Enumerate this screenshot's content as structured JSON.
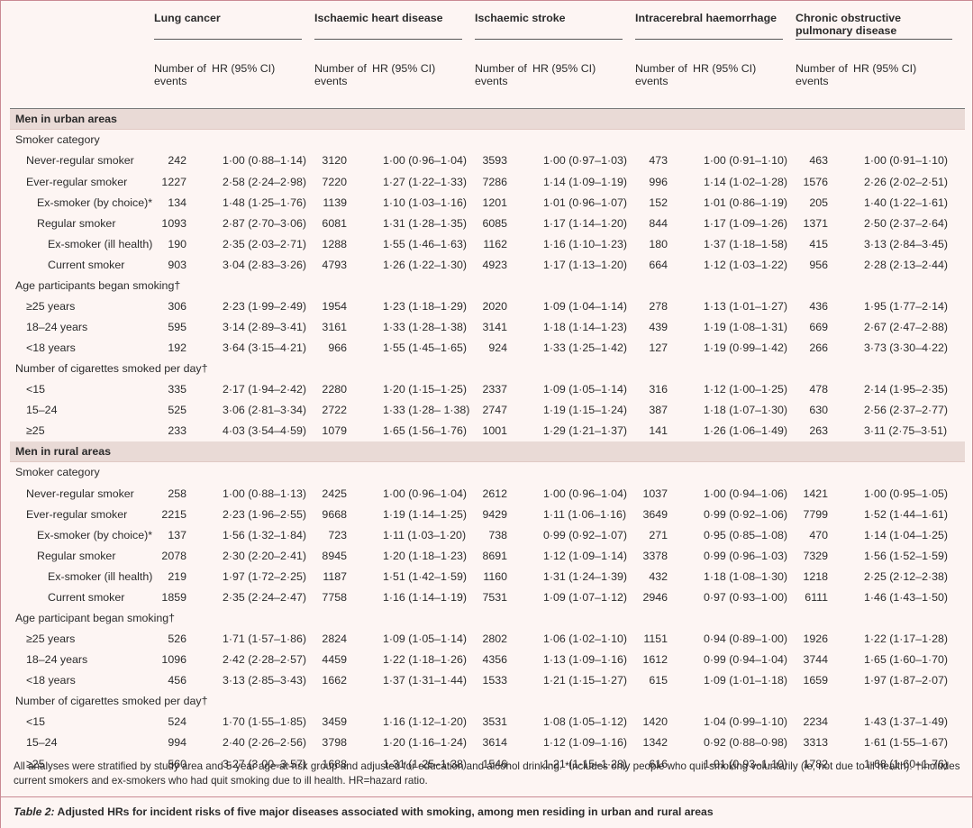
{
  "diseases": [
    "Lung cancer",
    "Ischaemic heart disease",
    "Ischaemic stroke",
    "Intracerebral haemorrhage",
    "Chronic obstructive pulmonary disease"
  ],
  "col_events": "Number of events",
  "col_hr": "HR (95% CI)",
  "sections": [
    {
      "title": "Men in urban areas",
      "groups": [
        {
          "title": "Smoker category",
          "rows": [
            {
              "label": "Never-regular smoker",
              "indent": 1,
              "cells": [
                [
                  "242",
                  "1·00 (0·88–1·14)"
                ],
                [
                  "3120",
                  "1·00 (0·96–1·04)"
                ],
                [
                  "3593",
                  "1·00 (0·97–1·03)"
                ],
                [
                  "473",
                  "1·00 (0·91–1·10)"
                ],
                [
                  "463",
                  "1·00 (0·91–1·10)"
                ]
              ]
            },
            {
              "label": "Ever-regular smoker",
              "indent": 1,
              "cells": [
                [
                  "1227",
                  "2·58 (2·24–2·98)"
                ],
                [
                  "7220",
                  "1·27 (1·22–1·33)"
                ],
                [
                  "7286",
                  "1·14 (1·09–1·19)"
                ],
                [
                  "996",
                  "1·14 (1·02–1·28)"
                ],
                [
                  "1576",
                  "2·26 (2·02–2·51)"
                ]
              ]
            },
            {
              "label": "Ex-smoker (by choice)*",
              "indent": 2,
              "cells": [
                [
                  "134",
                  "1·48 (1·25–1·76)"
                ],
                [
                  "1139",
                  "1·10 (1·03–1·16)"
                ],
                [
                  "1201",
                  "1·01 (0·96–1·07)"
                ],
                [
                  "152",
                  "1·01 (0·86–1·19)"
                ],
                [
                  "205",
                  "1·40 (1·22–1·61)"
                ]
              ]
            },
            {
              "label": "Regular smoker",
              "indent": 2,
              "cells": [
                [
                  "1093",
                  "2·87 (2·70–3·06)"
                ],
                [
                  "6081",
                  "1·31 (1·28–1·35)"
                ],
                [
                  "6085",
                  "1·17 (1·14–1·20)"
                ],
                [
                  "844",
                  "1·17 (1·09–1·26)"
                ],
                [
                  "1371",
                  "2·50 (2·37–2·64)"
                ]
              ]
            },
            {
              "label": "Ex-smoker (ill health)",
              "indent": 3,
              "cells": [
                [
                  "190",
                  "2·35 (2·03–2·71)"
                ],
                [
                  "1288",
                  "1·55 (1·46–1·63)"
                ],
                [
                  "1162",
                  "1·16 (1·10–1·23)"
                ],
                [
                  "180",
                  "1·37 (1·18–1·58)"
                ],
                [
                  "415",
                  "3·13 (2·84–3·45)"
                ]
              ]
            },
            {
              "label": "Current smoker",
              "indent": 3,
              "cells": [
                [
                  "903",
                  "3·04 (2·83–3·26)"
                ],
                [
                  "4793",
                  "1·26 (1·22–1·30)"
                ],
                [
                  "4923",
                  "1·17 (1·13–1·20)"
                ],
                [
                  "664",
                  "1·12 (1·03–1·22)"
                ],
                [
                  "956",
                  "2·28 (2·13–2·44)"
                ]
              ]
            }
          ]
        },
        {
          "title": "Age participants began smoking†",
          "rows": [
            {
              "label": "≥25 years",
              "indent": 1,
              "cells": [
                [
                  "306",
                  "2·23 (1·99–2·49)"
                ],
                [
                  "1954",
                  "1·23 (1·18–1·29)"
                ],
                [
                  "2020",
                  "1·09 (1·04–1·14)"
                ],
                [
                  "278",
                  "1·13 (1·01–1·27)"
                ],
                [
                  "436",
                  "1·95 (1·77–2·14)"
                ]
              ]
            },
            {
              "label": "18–24 years",
              "indent": 1,
              "cells": [
                [
                  "595",
                  "3·14 (2·89–3·41)"
                ],
                [
                  "3161",
                  "1·33 (1·28–1·38)"
                ],
                [
                  "3141",
                  "1·18 (1·14–1·23)"
                ],
                [
                  "439",
                  "1·19 (1·08–1·31)"
                ],
                [
                  "669",
                  "2·67 (2·47–2·88)"
                ]
              ]
            },
            {
              "label": "<18 years",
              "indent": 1,
              "cells": [
                [
                  "192",
                  "3·64 (3·15–4·21)"
                ],
                [
                  "966",
                  "1·55 (1·45–1·65)"
                ],
                [
                  "924",
                  "1·33 (1·25–1·42)"
                ],
                [
                  "127",
                  "1·19 (0·99–1·42)"
                ],
                [
                  "266",
                  "3·73 (3·30–4·22)"
                ]
              ]
            }
          ]
        },
        {
          "title": "Number of cigarettes smoked per day†",
          "rows": [
            {
              "label": "<15",
              "indent": 1,
              "cells": [
                [
                  "335",
                  "2·17 (1·94–2·42)"
                ],
                [
                  "2280",
                  "1·20 (1·15–1·25)"
                ],
                [
                  "2337",
                  "1·09 (1·05–1·14)"
                ],
                [
                  "316",
                  "1·12 (1·00–1·25)"
                ],
                [
                  "478",
                  "2·14 (1·95–2·35)"
                ]
              ]
            },
            {
              "label": "15–24",
              "indent": 1,
              "cells": [
                [
                  "525",
                  "3·06 (2·81–3·34)"
                ],
                [
                  "2722",
                  "1·33 (1·28– 1·38)"
                ],
                [
                  "2747",
                  "1·19 (1·15–1·24)"
                ],
                [
                  "387",
                  "1·18 (1·07–1·30)"
                ],
                [
                  "630",
                  "2·56 (2·37–2·77)"
                ]
              ]
            },
            {
              "label": "≥25",
              "indent": 1,
              "cells": [
                [
                  "233",
                  "4·03 (3·54–4·59)"
                ],
                [
                  "1079",
                  "1·65 (1·56–1·76)"
                ],
                [
                  "1001",
                  "1·29 (1·21–1·37)"
                ],
                [
                  "141",
                  "1·26 (1·06–1·49)"
                ],
                [
                  "263",
                  "3·11 (2·75–3·51)"
                ]
              ]
            }
          ]
        }
      ]
    },
    {
      "title": "Men in rural areas",
      "groups": [
        {
          "title": "Smoker category",
          "rows": [
            {
              "label": "Never-regular smoker",
              "indent": 1,
              "cells": [
                [
                  "258",
                  "1·00 (0·88–1·13)"
                ],
                [
                  "2425",
                  "1·00 (0·96–1·04)"
                ],
                [
                  "2612",
                  "1·00 (0·96–1·04)"
                ],
                [
                  "1037",
                  "1·00 (0·94–1·06)"
                ],
                [
                  "1421",
                  "1·00 (0·95–1·05)"
                ]
              ]
            },
            {
              "label": "Ever-regular smoker",
              "indent": 1,
              "cells": [
                [
                  "2215",
                  "2·23 (1·96–2·55)"
                ],
                [
                  "9668",
                  "1·19 (1·14–1·25)"
                ],
                [
                  "9429",
                  "1·11 (1·06–1·16)"
                ],
                [
                  "3649",
                  "0·99 (0·92–1·06)"
                ],
                [
                  "7799",
                  "1·52 (1·44–1·61)"
                ]
              ]
            },
            {
              "label": "Ex-smoker (by choice)*",
              "indent": 2,
              "cells": [
                [
                  "137",
                  "1·56 (1·32–1·84)"
                ],
                [
                  "723",
                  "1·11 (1·03–1·20)"
                ],
                [
                  "738",
                  "0·99 (0·92–1·07)"
                ],
                [
                  "271",
                  "0·95 (0·85–1·08)"
                ],
                [
                  "470",
                  "1·14 (1·04–1·25)"
                ]
              ]
            },
            {
              "label": "Regular smoker",
              "indent": 2,
              "cells": [
                [
                  "2078",
                  "2·30 (2·20–2·41)"
                ],
                [
                  "8945",
                  "1·20 (1·18–1·23)"
                ],
                [
                  "8691",
                  "1·12 (1·09–1·14)"
                ],
                [
                  "3378",
                  "0·99 (0·96–1·03)"
                ],
                [
                  "7329",
                  "1·56 (1·52–1·59)"
                ]
              ]
            },
            {
              "label": "Ex-smoker (ill health)",
              "indent": 3,
              "cells": [
                [
                  "219",
                  "1·97 (1·72–2·25)"
                ],
                [
                  "1187",
                  "1·51 (1·42–1·59)"
                ],
                [
                  "1160",
                  "1·31 (1·24–1·39)"
                ],
                [
                  "432",
                  "1·18 (1·08–1·30)"
                ],
                [
                  "1218",
                  "2·25 (2·12–2·38)"
                ]
              ]
            },
            {
              "label": "Current smoker",
              "indent": 3,
              "cells": [
                [
                  "1859",
                  "2·35 (2·24–2·47)"
                ],
                [
                  "7758",
                  "1·16 (1·14–1·19)"
                ],
                [
                  "7531",
                  "1·09 (1·07–1·12)"
                ],
                [
                  "2946",
                  "0·97 (0·93–1·00)"
                ],
                [
                  "6111",
                  "1·46 (1·43–1·50)"
                ]
              ]
            }
          ]
        },
        {
          "title": "Age participant began smoking†",
          "rows": [
            {
              "label": "≥25 years",
              "indent": 1,
              "cells": [
                [
                  "526",
                  "1·71 (1·57–1·86)"
                ],
                [
                  "2824",
                  "1·09 (1·05–1·14)"
                ],
                [
                  "2802",
                  "1·06 (1·02–1·10)"
                ],
                [
                  "1151",
                  "0·94 (0·89–1·00)"
                ],
                [
                  "1926",
                  "1·22 (1·17–1·28)"
                ]
              ]
            },
            {
              "label": "18–24 years",
              "indent": 1,
              "cells": [
                [
                  "1096",
                  "2·42 (2·28–2·57)"
                ],
                [
                  "4459",
                  "1·22 (1·18–1·26)"
                ],
                [
                  "4356",
                  "1·13 (1·09–1·16)"
                ],
                [
                  "1612",
                  "0·99 (0·94–1·04)"
                ],
                [
                  "3744",
                  "1·65 (1·60–1·70)"
                ]
              ]
            },
            {
              "label": "<18 years",
              "indent": 1,
              "cells": [
                [
                  "456",
                  "3·13 (2·85–3·43)"
                ],
                [
                  "1662",
                  "1·37 (1·31–1·44)"
                ],
                [
                  "1533",
                  "1·21 (1·15–1·27)"
                ],
                [
                  "615",
                  "1·09 (1·01–1·18)"
                ],
                [
                  "1659",
                  "1·97 (1·87–2·07)"
                ]
              ]
            }
          ]
        },
        {
          "title": "Number of cigarettes smoked per day†",
          "rows": [
            {
              "label": "<15",
              "indent": 1,
              "cells": [
                [
                  "524",
                  "1·70 (1·55–1·85)"
                ],
                [
                  "3459",
                  "1·16 (1·12–1·20)"
                ],
                [
                  "3531",
                  "1·08 (1·05–1·12)"
                ],
                [
                  "1420",
                  "1·04 (0·99–1·10)"
                ],
                [
                  "2234",
                  "1·43 (1·37–1·49)"
                ]
              ]
            },
            {
              "label": "15–24",
              "indent": 1,
              "cells": [
                [
                  "994",
                  "2·40 (2·26–2·56)"
                ],
                [
                  "3798",
                  "1·20 (1·16–1·24)"
                ],
                [
                  "3614",
                  "1·12 (1·09–1·16)"
                ],
                [
                  "1342",
                  "0·92 (0·88–0·98)"
                ],
                [
                  "3313",
                  "1·61 (1·55–1·67)"
                ]
              ]
            },
            {
              "label": "≥25",
              "indent": 1,
              "cells": [
                [
                  "560",
                  "3·27 (3·00–3·57)"
                ],
                [
                  "1688",
                  "1·31 (1·25–1·38)"
                ],
                [
                  "1546",
                  "1·21 (1·15–1·28)"
                ],
                [
                  "616",
                  "1·01 (0·93–1·10)"
                ],
                [
                  "1782",
                  "1·68 (1·60–1·76)"
                ]
              ]
            }
          ]
        }
      ]
    }
  ],
  "footnote": "All analyses were stratified by study area and 5-year age-at-risk group and adjusted for education and alcohol drinking. *Includes only people who quit smoking voluntarily (ie, not due to ill health). †Includes current smokers and ex-smokers who had quit smoking due to ill health. HR=hazard ratio.",
  "caption_label": "Table 2:",
  "caption_text": " Adjusted HRs for incident risks of five major diseases associated with smoking, among men residing in urban and rural areas"
}
